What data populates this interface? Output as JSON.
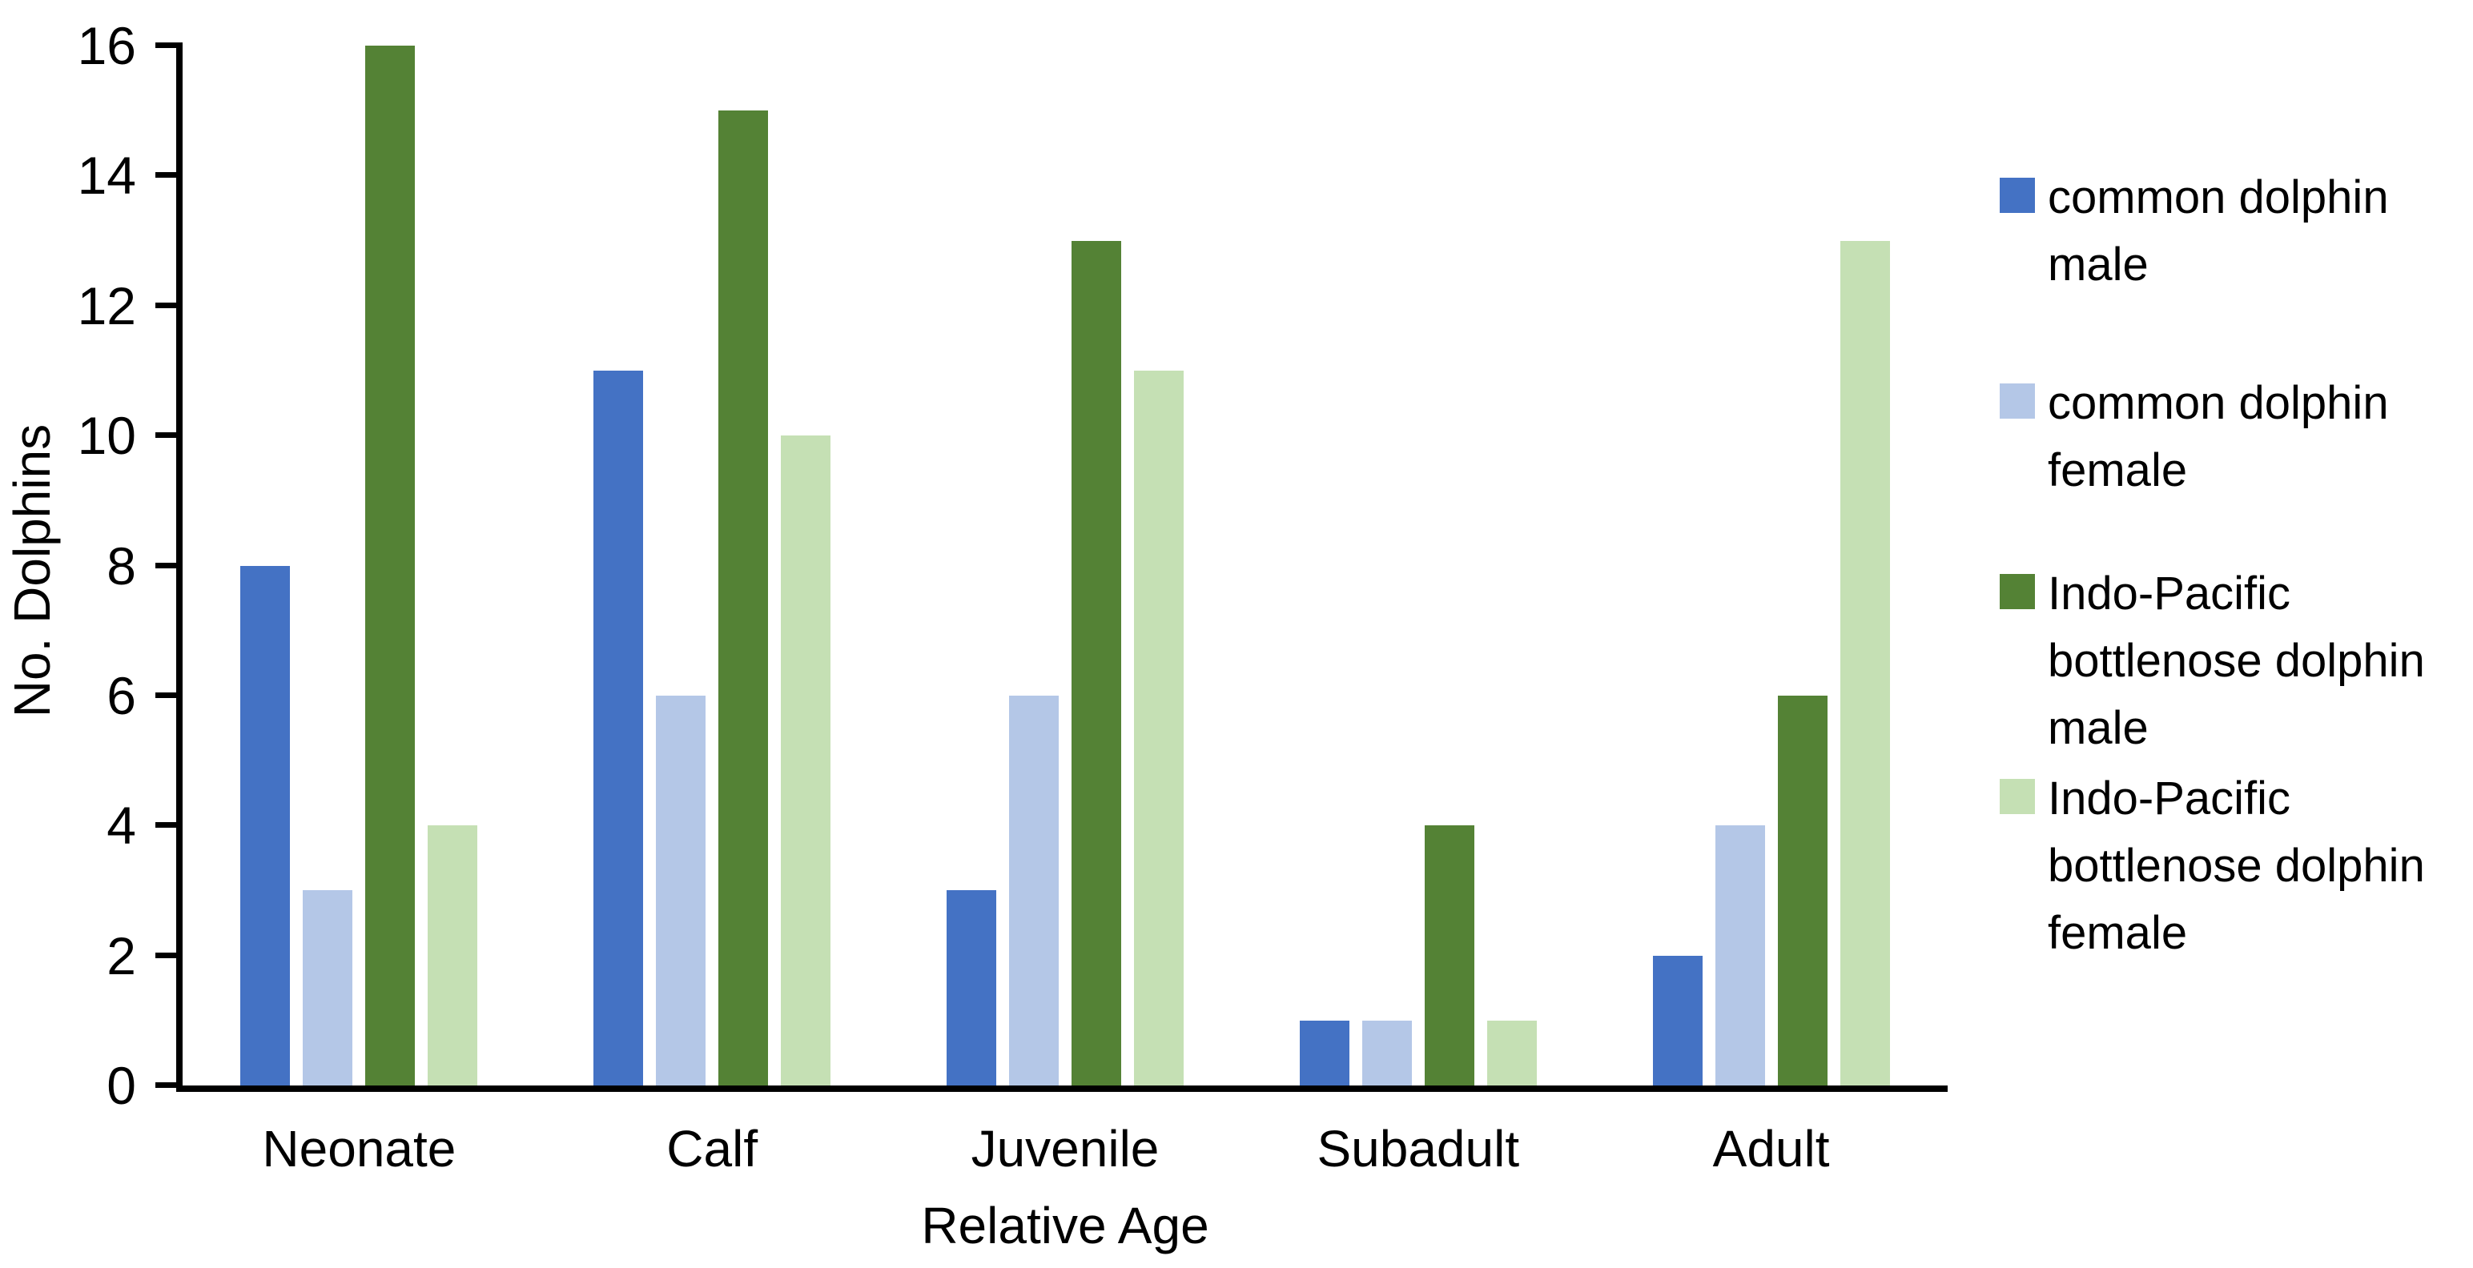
{
  "chart_data": {
    "type": "bar",
    "title": "",
    "xlabel": "Relative Age",
    "ylabel": "No. Dolphins",
    "categories": [
      "Neonate",
      "Calf",
      "Juvenile",
      "Subadult",
      "Adult"
    ],
    "series": [
      {
        "name": "common dolphin male",
        "color": "#4472C4",
        "values": [
          8,
          11,
          3,
          1,
          2
        ]
      },
      {
        "name": "common dolphin female",
        "color": "#B4C7E7",
        "values": [
          3,
          6,
          6,
          1,
          4
        ]
      },
      {
        "name": "Indo-Pacific bottlenose dolphin male",
        "color": "#548235",
        "values": [
          16,
          15,
          13,
          4,
          6
        ]
      },
      {
        "name": "Indo-Pacific bottlenose dolphin female",
        "color": "#C5E0B4",
        "values": [
          4,
          10,
          11,
          1,
          13
        ]
      }
    ],
    "ylim": [
      0,
      16
    ],
    "yticks": [
      0,
      2,
      4,
      6,
      8,
      10,
      12,
      14,
      16
    ],
    "grid": false,
    "legend_position": "right",
    "axis_color": "#000000",
    "background_color": "#ffffff"
  }
}
